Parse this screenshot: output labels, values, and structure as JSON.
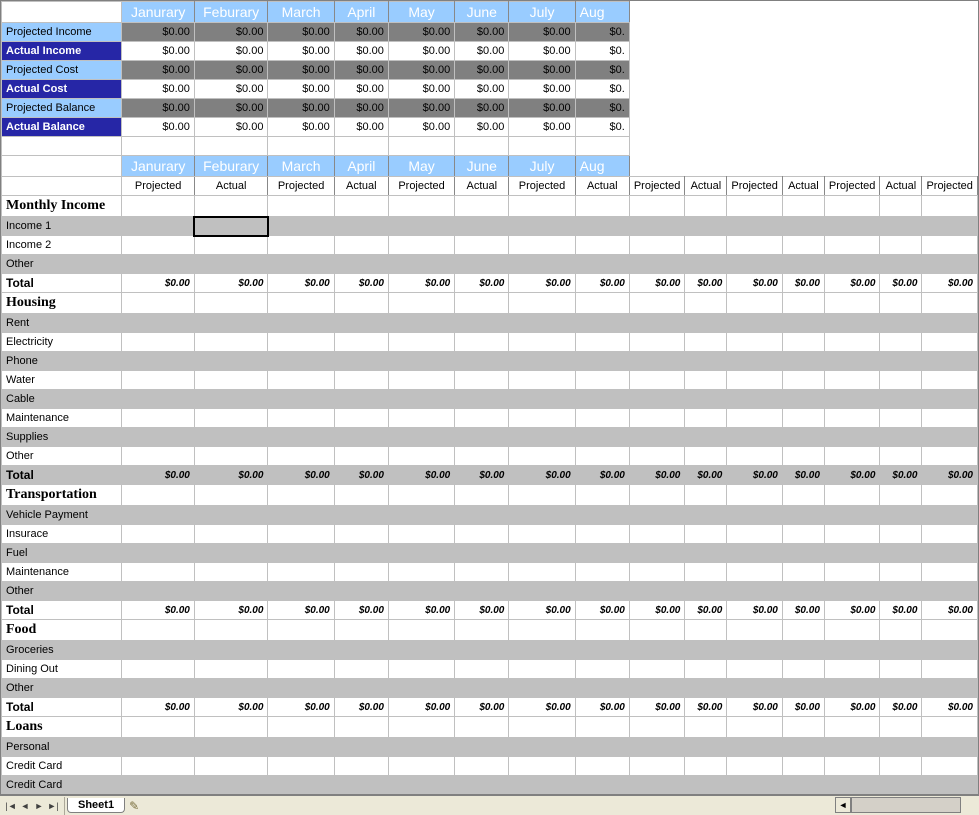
{
  "months": [
    "Janurary",
    "Feburary",
    "March",
    "April",
    "May",
    "June",
    "July",
    "Aug"
  ],
  "summary": [
    {
      "label": "Projected Income",
      "style": "proj",
      "vals": [
        "$0.00",
        "$0.00",
        "$0.00",
        "$0.00",
        "$0.00",
        "$0.00",
        "$0.00",
        "$0."
      ]
    },
    {
      "label": "Actual Income",
      "style": "act",
      "vals": [
        "$0.00",
        "$0.00",
        "$0.00",
        "$0.00",
        "$0.00",
        "$0.00",
        "$0.00",
        "$0."
      ]
    },
    {
      "label": "Projected Cost",
      "style": "proj",
      "vals": [
        "$0.00",
        "$0.00",
        "$0.00",
        "$0.00",
        "$0.00",
        "$0.00",
        "$0.00",
        "$0."
      ]
    },
    {
      "label": "Actual Cost",
      "style": "act",
      "vals": [
        "$0.00",
        "$0.00",
        "$0.00",
        "$0.00",
        "$0.00",
        "$0.00",
        "$0.00",
        "$0."
      ]
    },
    {
      "label": "Projected Balance",
      "style": "proj",
      "vals": [
        "$0.00",
        "$0.00",
        "$0.00",
        "$0.00",
        "$0.00",
        "$0.00",
        "$0.00",
        "$0."
      ]
    },
    {
      "label": "Actual Balance",
      "style": "act",
      "vals": [
        "$0.00",
        "$0.00",
        "$0.00",
        "$0.00",
        "$0.00",
        "$0.00",
        "$0.00",
        "$0."
      ]
    }
  ],
  "subheaders": [
    "Projected",
    "Actual"
  ],
  "sections": [
    {
      "title": "Monthly Income",
      "rows": [
        "Income 1",
        "Income 2",
        "Other"
      ],
      "total_label": "Total",
      "totals": [
        "$0.00",
        "$0.00",
        "$0.00",
        "$0.00",
        "$0.00",
        "$0.00",
        "$0.00",
        "$0.00",
        "$0.00",
        "$0.00",
        "$0.00",
        "$0.00",
        "$0.00",
        "$0.00",
        "$0.00"
      ],
      "selected_row": 0,
      "selected_col": 1
    },
    {
      "title": "Housing",
      "rows": [
        "Rent",
        "Electricity",
        "Phone",
        "Water",
        "Cable",
        "Maintenance",
        "Supplies",
        "Other"
      ],
      "total_label": "Total",
      "totals": [
        "$0.00",
        "$0.00",
        "$0.00",
        "$0.00",
        "$0.00",
        "$0.00",
        "$0.00",
        "$0.00",
        "$0.00",
        "$0.00",
        "$0.00",
        "$0.00",
        "$0.00",
        "$0.00",
        "$0.00"
      ]
    },
    {
      "title": "Transportation",
      "rows": [
        "Vehicle Payment",
        "Insurace",
        "Fuel",
        "Maintenance",
        "Other"
      ],
      "total_label": "Total",
      "totals": [
        "$0.00",
        "$0.00",
        "$0.00",
        "$0.00",
        "$0.00",
        "$0.00",
        "$0.00",
        "$0.00",
        "$0.00",
        "$0.00",
        "$0.00",
        "$0.00",
        "$0.00",
        "$0.00",
        "$0.00"
      ]
    },
    {
      "title": "Food",
      "rows": [
        "Groceries",
        "Dining Out",
        "Other"
      ],
      "total_label": "Total",
      "totals": [
        "$0.00",
        "$0.00",
        "$0.00",
        "$0.00",
        "$0.00",
        "$0.00",
        "$0.00",
        "$0.00",
        "$0.00",
        "$0.00",
        "$0.00",
        "$0.00",
        "$0.00",
        "$0.00",
        "$0.00"
      ]
    },
    {
      "title": "Loans",
      "rows": [
        "Personal",
        "Credit Card",
        "Credit Card"
      ],
      "total_label": "",
      "totals": null
    }
  ],
  "tab": {
    "name": "Sheet1"
  },
  "colors": {
    "month_header_bg": "#99ccff",
    "month_header_fg": "#ffffff",
    "proj_label_bg": "#99ccff",
    "act_label_bg": "#2626a6",
    "proj_val_bg": "#808080",
    "stripe_bg": "#c0c0c0",
    "grid": "#c0c0c0",
    "tabbar_bg": "#ece9d8"
  }
}
